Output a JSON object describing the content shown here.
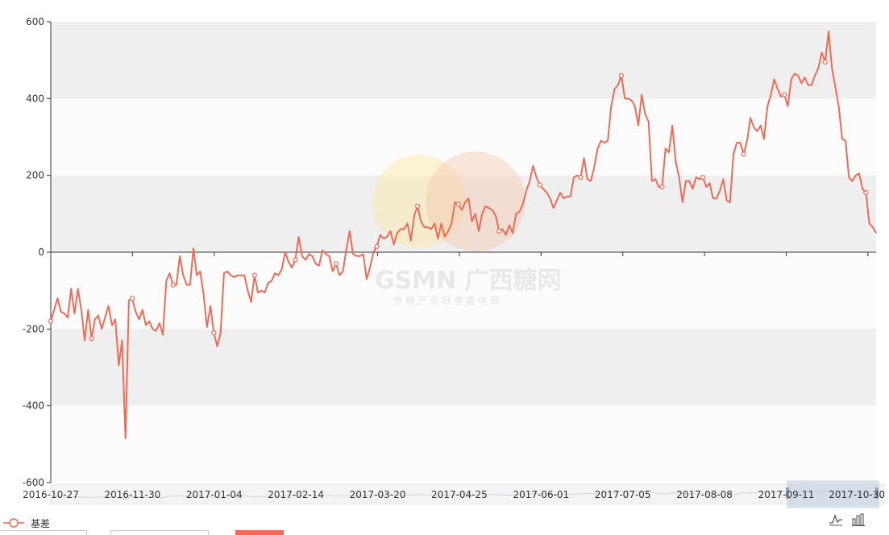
{
  "chart_data": {
    "type": "line",
    "title": "",
    "xlabel": "",
    "ylabel": "",
    "ylim": [
      -600,
      600
    ],
    "y_ticks": [
      600,
      400,
      200,
      0,
      -200,
      -400,
      -600
    ],
    "x_tick_labels": [
      "2016-10-27",
      "2016-11-30",
      "2017-01-04",
      "2017-02-14",
      "2017-03-20",
      "2017-04-25",
      "2017-06-01",
      "2017-07-05",
      "2017-08-08",
      "2017-09-11",
      "2017-10-30"
    ],
    "grid": "alternating horizontal bands",
    "legend_position": "bottom-left",
    "series": [
      {
        "name": "基差",
        "color": "#ee6b55",
        "values": [
          -180,
          -150,
          -120,
          -155,
          -160,
          -170,
          -95,
          -160,
          -95,
          -150,
          -230,
          -150,
          -225,
          -175,
          -165,
          -200,
          -170,
          -140,
          -190,
          -175,
          -295,
          -230,
          -485,
          -125,
          -120,
          -155,
          -175,
          -150,
          -190,
          -180,
          -200,
          -205,
          -185,
          -215,
          -75,
          -55,
          -85,
          -85,
          -10,
          -60,
          -85,
          -85,
          10,
          -60,
          -50,
          -110,
          -195,
          -140,
          -210,
          -245,
          -210,
          -55,
          -50,
          -60,
          -65,
          -60,
          -60,
          -60,
          -100,
          -130,
          -60,
          -105,
          -100,
          -105,
          -80,
          -75,
          -55,
          -60,
          -45,
          0,
          -25,
          -40,
          -20,
          40,
          -10,
          -20,
          -5,
          -10,
          -30,
          -35,
          5,
          -5,
          -10,
          -50,
          -30,
          -60,
          -50,
          5,
          55,
          -5,
          -10,
          -10,
          -5,
          -70,
          -40,
          0,
          15,
          45,
          35,
          40,
          55,
          20,
          50,
          60,
          60,
          75,
          30,
          95,
          120,
          80,
          65,
          65,
          60,
          75,
          35,
          75,
          40,
          55,
          75,
          130,
          125,
          110,
          130,
          140,
          80,
          100,
          55,
          100,
          120,
          115,
          110,
          95,
          55,
          60,
          45,
          70,
          50,
          100,
          105,
          125,
          160,
          185,
          225,
          195,
          175,
          165,
          155,
          140,
          115,
          135,
          155,
          140,
          145,
          145,
          195,
          200,
          195,
          245,
          190,
          185,
          220,
          270,
          290,
          285,
          290,
          380,
          425,
          435,
          460,
          400,
          400,
          395,
          380,
          330,
          410,
          360,
          340,
          185,
          190,
          170,
          170,
          270,
          260,
          330,
          235,
          195,
          130,
          185,
          185,
          165,
          195,
          190,
          195,
          170,
          180,
          140,
          140,
          160,
          190,
          135,
          130,
          255,
          285,
          285,
          255,
          290,
          350,
          325,
          315,
          330,
          295,
          380,
          410,
          450,
          425,
          405,
          410,
          380,
          450,
          465,
          460,
          440,
          455,
          435,
          435,
          460,
          480,
          520,
          495,
          575,
          480,
          430,
          380,
          295,
          290,
          195,
          185,
          200,
          205,
          165,
          155,
          75,
          65,
          50
        ]
      }
    ]
  },
  "watermark": {
    "brand": "GSMN 广西糖网",
    "tagline": "食糖产业链垂直电商"
  },
  "toolbar": {
    "line_icon": "line-chart-icon",
    "bar_icon": "bar-chart-icon"
  }
}
